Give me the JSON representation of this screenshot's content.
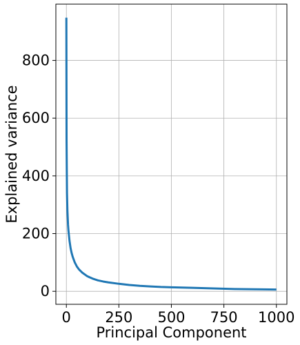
{
  "chart_data": {
    "type": "line",
    "title": "",
    "xlabel": "Principal Component",
    "ylabel": "Explained variance",
    "xlim": [
      -50,
      1050
    ],
    "ylim": [
      -45,
      995
    ],
    "grid": true,
    "line_color": "#1f77b4",
    "xticks": [
      0,
      250,
      500,
      750,
      1000
    ],
    "yticks": [
      0,
      200,
      400,
      600,
      800
    ],
    "series": [
      {
        "x": [
          0,
          1,
          2,
          3,
          5,
          8,
          10,
          15,
          20,
          25,
          30,
          40,
          50,
          60,
          75,
          100,
          125,
          150,
          175,
          200,
          250,
          300,
          350,
          400,
          450,
          500,
          600,
          700,
          800,
          900,
          1000
        ],
        "values": [
          948,
          520,
          420,
          340,
          280,
          230,
          210,
          175,
          150,
          133,
          120,
          100,
          86,
          76,
          65,
          52,
          44,
          38,
          34,
          31,
          26,
          22,
          19,
          17,
          15,
          14,
          12,
          10,
          8,
          7,
          6
        ]
      }
    ]
  }
}
